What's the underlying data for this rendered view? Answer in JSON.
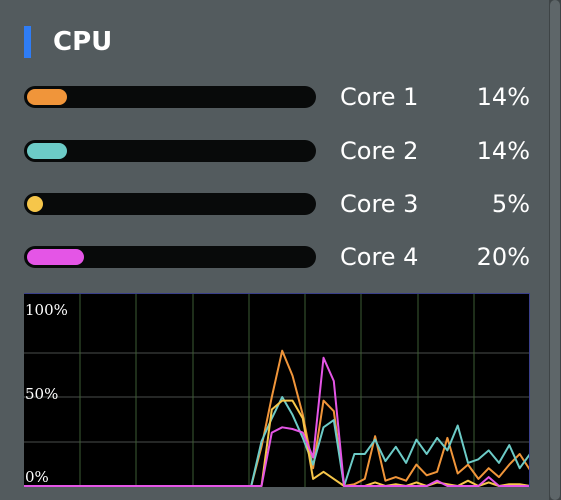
{
  "title": "CPU",
  "accent_color": "#2f7df6",
  "cores": [
    {
      "label": "Core 1",
      "percent_text": "14%",
      "percent": 14,
      "color": "#f0953a"
    },
    {
      "label": "Core 2",
      "percent_text": "14%",
      "percent": 14,
      "color": "#6ccbc7"
    },
    {
      "label": "Core 3",
      "percent_text": "5%",
      "percent": 5,
      "color": "#f6c64a"
    },
    {
      "label": "Core 4",
      "percent_text": "20%",
      "percent": 20,
      "color": "#e455e6"
    }
  ],
  "history_chart": {
    "tick_labels": [
      "100%",
      "50%",
      "0%"
    ],
    "ylim": [
      0,
      100
    ],
    "grid": true,
    "grid_color": "#3d5c33",
    "samples": 50
  },
  "chart_data": {
    "type": "line",
    "ylim": [
      0,
      100
    ],
    "series": [
      {
        "color": "#f0953a",
        "values": [
          0,
          0,
          0,
          0,
          0,
          0,
          0,
          0,
          0,
          0,
          0,
          0,
          0,
          0,
          0,
          0,
          0,
          0,
          0,
          0,
          0,
          0,
          0,
          22,
          50,
          76,
          62,
          40,
          10,
          48,
          42,
          0,
          1,
          4,
          28,
          3,
          5,
          3,
          12,
          6,
          8,
          27,
          7,
          12,
          4,
          10,
          5,
          12,
          18,
          9
        ]
      },
      {
        "color": "#6ccbc7",
        "values": [
          0,
          0,
          0,
          0,
          0,
          0,
          0,
          0,
          0,
          0,
          0,
          0,
          0,
          0,
          0,
          0,
          0,
          0,
          0,
          0,
          0,
          0,
          0,
          25,
          38,
          50,
          40,
          27,
          12,
          33,
          37,
          0,
          18,
          18,
          26,
          14,
          22,
          13,
          26,
          18,
          27,
          20,
          34,
          13,
          15,
          20,
          13,
          23,
          10,
          18
        ]
      },
      {
        "color": "#f6c64a",
        "values": [
          0,
          0,
          0,
          0,
          0,
          0,
          0,
          0,
          0,
          0,
          0,
          0,
          0,
          0,
          0,
          0,
          0,
          0,
          0,
          0,
          0,
          0,
          0,
          0,
          43,
          48,
          48,
          38,
          4,
          8,
          4,
          0,
          0,
          0,
          2,
          0,
          1,
          0,
          2,
          0,
          2,
          1,
          0,
          3,
          0,
          2,
          0,
          1,
          1,
          0
        ]
      },
      {
        "color": "#e455e6",
        "values": [
          0,
          0,
          0,
          0,
          0,
          0,
          0,
          0,
          0,
          0,
          0,
          0,
          0,
          0,
          0,
          0,
          0,
          0,
          0,
          0,
          0,
          0,
          0,
          0,
          30,
          33,
          32,
          30,
          16,
          72,
          59,
          0,
          0,
          0,
          0,
          0,
          0,
          0,
          0,
          0,
          3,
          0,
          0,
          0,
          0,
          5,
          0,
          0,
          0,
          0
        ]
      }
    ]
  }
}
